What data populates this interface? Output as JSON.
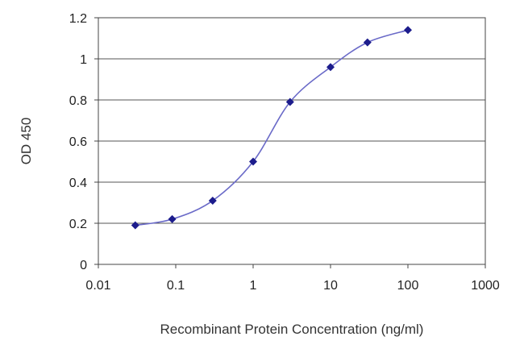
{
  "chart_data": {
    "type": "line",
    "title": "",
    "xlabel": "Recombinant Protein Concentration (ng/ml)",
    "ylabel": "OD 450",
    "x_scale": "log",
    "xlim": [
      0.01,
      1000
    ],
    "ylim": [
      0,
      1.2
    ],
    "x_ticks": [
      "0.01",
      "0.1",
      "1",
      "10",
      "100",
      "1000"
    ],
    "y_ticks": [
      "0",
      "0.2",
      "0.4",
      "0.6",
      "0.8",
      "1",
      "1.2"
    ],
    "grid": "horizontal",
    "legend": "none",
    "line_color": "#6a6ac8",
    "marker_color": "#1c1c8c",
    "series": [
      {
        "x": [
          0.03,
          0.09,
          0.3,
          1,
          3,
          10,
          30,
          100
        ],
        "y": [
          0.19,
          0.22,
          0.31,
          0.5,
          0.79,
          0.96,
          1.08,
          1.14
        ]
      }
    ]
  }
}
